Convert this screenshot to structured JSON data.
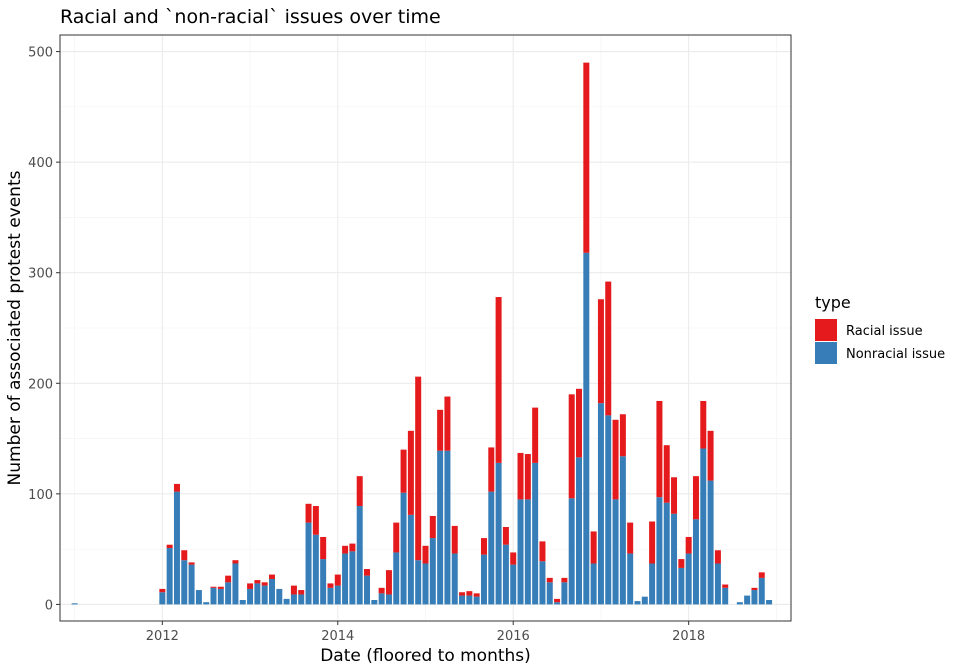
{
  "chart_data": {
    "type": "bar",
    "stacked": true,
    "title": "Racial and `non-racial` issues over time",
    "xlabel": "Date (floored to months)",
    "ylabel": "Number of associated protest events",
    "xlim": [
      "2010-11",
      "2019-03"
    ],
    "ylim": [
      -15,
      515
    ],
    "x_tick_labels": [
      "2012",
      "2014",
      "2016",
      "2018"
    ],
    "x_tick_values": [
      "2012-01",
      "2014-01",
      "2016-01",
      "2018-01"
    ],
    "y_tick_labels": [
      "0",
      "100",
      "200",
      "300",
      "400",
      "500"
    ],
    "y_tick_values": [
      0,
      100,
      200,
      300,
      400,
      500
    ],
    "grid": true,
    "legend": {
      "title": "type",
      "position": "right"
    },
    "series": [
      {
        "name": "Nonracial issue",
        "color": "#377EB8"
      },
      {
        "name": "Racial issue",
        "color": "#E41A1C"
      }
    ],
    "months": [
      "2011-01",
      "2012-01",
      "2012-02",
      "2012-03",
      "2012-04",
      "2012-05",
      "2012-06",
      "2012-07",
      "2012-08",
      "2012-09",
      "2012-10",
      "2012-11",
      "2012-12",
      "2013-01",
      "2013-02",
      "2013-03",
      "2013-04",
      "2013-05",
      "2013-06",
      "2013-07",
      "2013-08",
      "2013-09",
      "2013-10",
      "2013-11",
      "2013-12",
      "2014-01",
      "2014-02",
      "2014-03",
      "2014-04",
      "2014-05",
      "2014-06",
      "2014-07",
      "2014-08",
      "2014-09",
      "2014-10",
      "2014-11",
      "2014-12",
      "2015-01",
      "2015-02",
      "2015-03",
      "2015-04",
      "2015-05",
      "2015-06",
      "2015-07",
      "2015-08",
      "2015-09",
      "2015-10",
      "2015-11",
      "2015-12",
      "2016-01",
      "2016-02",
      "2016-03",
      "2016-04",
      "2016-05",
      "2016-06",
      "2016-07",
      "2016-08",
      "2016-09",
      "2016-10",
      "2016-11",
      "2016-12",
      "2017-01",
      "2017-02",
      "2017-03",
      "2017-04",
      "2017-05",
      "2017-06",
      "2017-07",
      "2017-08",
      "2017-09",
      "2017-10",
      "2017-11",
      "2017-12",
      "2018-01",
      "2018-02",
      "2018-03",
      "2018-04",
      "2018-05",
      "2018-06",
      "2018-07",
      "2018-08",
      "2018-09",
      "2018-10",
      "2018-11",
      "2018-12"
    ],
    "nonracial": [
      1,
      11,
      51,
      102,
      40,
      36,
      13,
      2,
      15,
      14,
      20,
      37,
      4,
      14,
      19,
      17,
      23,
      14,
      5,
      9,
      9,
      74,
      63,
      41,
      15,
      17,
      46,
      48,
      89,
      26,
      4,
      10,
      9,
      47,
      101,
      81,
      40,
      37,
      60,
      139,
      139,
      46,
      8,
      8,
      7,
      45,
      102,
      128,
      54,
      36,
      95,
      95,
      128,
      39,
      20,
      2,
      20,
      96,
      133,
      318,
      37,
      182,
      171,
      95,
      134,
      46,
      3,
      7,
      37,
      97,
      92,
      82,
      33,
      46,
      77,
      141,
      112,
      37,
      15,
      0,
      2,
      8,
      13,
      24,
      4
    ],
    "racial": [
      0,
      3,
      3,
      7,
      9,
      2,
      0,
      0,
      1,
      2,
      6,
      3,
      0,
      5,
      3,
      3,
      4,
      0,
      0,
      8,
      4,
      17,
      26,
      20,
      4,
      10,
      7,
      7,
      27,
      6,
      0,
      5,
      22,
      27,
      39,
      76,
      166,
      16,
      20,
      37,
      49,
      25,
      3,
      4,
      3,
      15,
      40,
      150,
      16,
      11,
      42,
      41,
      50,
      18,
      4,
      3,
      4,
      94,
      62,
      172,
      29,
      94,
      121,
      72,
      38,
      28,
      0,
      0,
      38,
      87,
      52,
      33,
      8,
      15,
      39,
      43,
      45,
      12,
      3,
      0,
      0,
      0,
      2,
      5,
      0
    ]
  }
}
